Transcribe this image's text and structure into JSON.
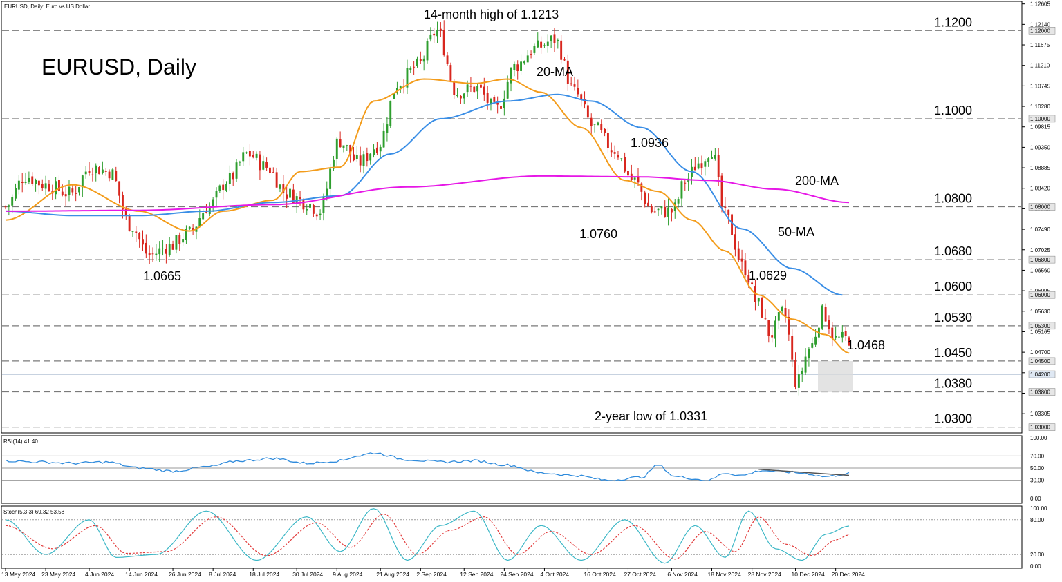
{
  "header": {
    "symbol_caption": "EURUSD, Daily:  Euro vs US Dollar",
    "big_title": "EURUSD, Daily"
  },
  "colors": {
    "bull": "#2e9e2e",
    "bear": "#d8261e",
    "ma20": "#f39c1b",
    "ma50": "#3a8ee6",
    "ma200": "#e617e6",
    "rsi": "#2f8bdc",
    "stoch_main": "#3bb7c6",
    "stoch_signal": "#e23b3b",
    "grid_dash": "#7a7a7a",
    "current_price": "#8fa6c2"
  },
  "chart_data": [
    {
      "type": "candlestick",
      "title": "EURUSD, Daily",
      "ylim": [
        1.029,
        1.126
      ],
      "price_axis_ticks": [
        "1.12605",
        "1.12140",
        "1.11675",
        "1.11210",
        "1.10745",
        "1.10280",
        "1.09815",
        "1.09350",
        "1.08885",
        "1.08420",
        "1.07955",
        "1.07490",
        "1.07025",
        "1.06560",
        "1.06095",
        "1.05630",
        "1.05165",
        "1.04700",
        "1.04235",
        "1.03770",
        "1.03305",
        "1.02840"
      ],
      "x_dates": [
        "13 May 2024",
        "23 May 2024",
        "4 Jun 2024",
        "14 Jun 2024",
        "26 Jun 2024",
        "8 Jul 2024",
        "18 Jul 2024",
        "30 Jul 2024",
        "9 Aug 2024",
        "21 Aug 2024",
        "2 Sep 2024",
        "12 Sep 2024",
        "24 Sep 2024",
        "4 Oct 2024",
        "16 Oct 2024",
        "27 Oct 2024",
        "6 Nov 2024",
        "18 Nov 2024",
        "28 Nov 2024",
        "10 Dec 2024",
        "20 Dec 2024"
      ],
      "levels": [
        {
          "value": 1.12,
          "label": "1.1200",
          "tag": "1.12000"
        },
        {
          "value": 1.1,
          "label": "1.1000",
          "tag": "1.10000"
        },
        {
          "value": 1.08,
          "label": "1.0800",
          "tag": "1.08000"
        },
        {
          "value": 1.068,
          "label": "1.0680",
          "tag": "1.06800"
        },
        {
          "value": 1.06,
          "label": "1.0600",
          "tag": "1.06000"
        },
        {
          "value": 1.053,
          "label": "1.0530",
          "tag": "1.05300"
        },
        {
          "value": 1.045,
          "label": "1.0450",
          "tag": "1.04500"
        },
        {
          "value": 1.038,
          "label": "1.0380",
          "tag": "1.03800"
        },
        {
          "value": 1.03,
          "label": "1.0300",
          "tag": "1.03000"
        }
      ],
      "current_price": {
        "value": 1.042,
        "tag": "1.04200"
      },
      "annotations": [
        {
          "text": "14-month high of 1.1213"
        },
        {
          "text": "20-MA"
        },
        {
          "text": "1.0936"
        },
        {
          "text": "200-MA"
        },
        {
          "text": "1.0760"
        },
        {
          "text": "50-MA"
        },
        {
          "text": "1.0665"
        },
        {
          "text": "1.0629"
        },
        {
          "text": "1.0468"
        },
        {
          "text": "2-year low of 1.0331"
        }
      ],
      "series": [
        {
          "name": "20-MA",
          "anchors": [
            [
              0,
              1.077
            ],
            [
              20,
              1.085
            ],
            [
              40,
              1.079
            ],
            [
              55,
              1.0745
            ],
            [
              65,
              1.079
            ],
            [
              80,
              1.0815
            ],
            [
              88,
              1.088
            ],
            [
              100,
              1.089
            ],
            [
              110,
              1.104
            ],
            [
              125,
              1.109
            ],
            [
              140,
              1.108
            ],
            [
              150,
              1.109
            ],
            [
              160,
              1.106
            ],
            [
              172,
              1.098
            ],
            [
              185,
              1.086
            ],
            [
              195,
              1.0835
            ],
            [
              205,
              1.077
            ],
            [
              215,
              1.07
            ],
            [
              225,
              1.06
            ],
            [
              235,
              1.0545
            ],
            [
              245,
              1.051
            ],
            [
              252,
              1.0468
            ]
          ]
        },
        {
          "name": "50-MA",
          "anchors": [
            [
              0,
              1.079
            ],
            [
              20,
              1.078
            ],
            [
              40,
              1.078
            ],
            [
              60,
              1.079
            ],
            [
              80,
              1.081
            ],
            [
              100,
              1.0825
            ],
            [
              115,
              1.092
            ],
            [
              130,
              1.1
            ],
            [
              150,
              1.104
            ],
            [
              165,
              1.1055
            ],
            [
              175,
              1.104
            ],
            [
              190,
              1.098
            ],
            [
              205,
              1.088
            ],
            [
              220,
              1.075
            ],
            [
              235,
              1.066
            ],
            [
              250,
              1.06
            ]
          ]
        },
        {
          "name": "200-MA",
          "anchors": [
            [
              0,
              1.079
            ],
            [
              40,
              1.0792
            ],
            [
              80,
              1.0805
            ],
            [
              120,
              1.0845
            ],
            [
              160,
              1.087
            ],
            [
              190,
              1.0868
            ],
            [
              210,
              1.086
            ],
            [
              230,
              1.084
            ],
            [
              252,
              1.081
            ]
          ]
        }
      ]
    },
    {
      "type": "line",
      "title": "RSI(14) 41.40",
      "ylim": [
        0,
        100
      ],
      "y_ticks": [
        "100.00",
        "70.00",
        "50.00",
        "30.00",
        "0.00"
      ],
      "levels": [
        70,
        50,
        30
      ],
      "series": [
        {
          "name": "RSI(14)",
          "anchors": [
            [
              0,
              62
            ],
            [
              10,
              60
            ],
            [
              20,
              58
            ],
            [
              30,
              60
            ],
            [
              40,
              50
            ],
            [
              50,
              45
            ],
            [
              60,
              52
            ],
            [
              70,
              62
            ],
            [
              80,
              66
            ],
            [
              90,
              58
            ],
            [
              100,
              62
            ],
            [
              105,
              70
            ],
            [
              110,
              75
            ],
            [
              120,
              64
            ],
            [
              130,
              60
            ],
            [
              140,
              62
            ],
            [
              150,
              55
            ],
            [
              160,
              42
            ],
            [
              170,
              38
            ],
            [
              180,
              30
            ],
            [
              190,
              35
            ],
            [
              195,
              55
            ],
            [
              200,
              36
            ],
            [
              210,
              30
            ],
            [
              215,
              42
            ],
            [
              220,
              38
            ],
            [
              226,
              46
            ],
            [
              232,
              44
            ],
            [
              238,
              42
            ],
            [
              245,
              36
            ],
            [
              252,
              41
            ]
          ]
        },
        {
          "name": "trendline",
          "anchors": [
            [
              225,
              48
            ],
            [
              252,
              38
            ]
          ]
        }
      ]
    },
    {
      "type": "line",
      "title": "Stoch(5,3,3) 69.32 53.58",
      "ylim": [
        0,
        100
      ],
      "y_ticks": [
        "100.00",
        "80.00",
        "20.00",
        "0.00"
      ],
      "levels": [
        80,
        20
      ],
      "series": [
        {
          "name": "Stoch %K",
          "anchors": [
            [
              0,
              80
            ],
            [
              12,
              20
            ],
            [
              25,
              80
            ],
            [
              33,
              15
            ],
            [
              45,
              20
            ],
            [
              60,
              95
            ],
            [
              75,
              10
            ],
            [
              90,
              85
            ],
            [
              100,
              25
            ],
            [
              110,
              100
            ],
            [
              120,
              10
            ],
            [
              130,
              70
            ],
            [
              140,
              95
            ],
            [
              150,
              10
            ],
            [
              160,
              70
            ],
            [
              172,
              10
            ],
            [
              185,
              80
            ],
            [
              197,
              5
            ],
            [
              206,
              70
            ],
            [
              215,
              15
            ],
            [
              222,
              95
            ],
            [
              230,
              30
            ],
            [
              238,
              10
            ],
            [
              245,
              55
            ],
            [
              252,
              69
            ]
          ]
        },
        {
          "name": "Stoch %D",
          "anchors": [
            [
              0,
              70
            ],
            [
              14,
              30
            ],
            [
              27,
              70
            ],
            [
              36,
              22
            ],
            [
              48,
              25
            ],
            [
              63,
              85
            ],
            [
              78,
              18
            ],
            [
              93,
              75
            ],
            [
              103,
              32
            ],
            [
              113,
              90
            ],
            [
              123,
              20
            ],
            [
              133,
              62
            ],
            [
              143,
              85
            ],
            [
              153,
              20
            ],
            [
              163,
              60
            ],
            [
              175,
              20
            ],
            [
              188,
              70
            ],
            [
              200,
              12
            ],
            [
              209,
              60
            ],
            [
              218,
              25
            ],
            [
              225,
              85
            ],
            [
              233,
              38
            ],
            [
              241,
              18
            ],
            [
              248,
              45
            ],
            [
              252,
              54
            ]
          ]
        }
      ]
    }
  ]
}
